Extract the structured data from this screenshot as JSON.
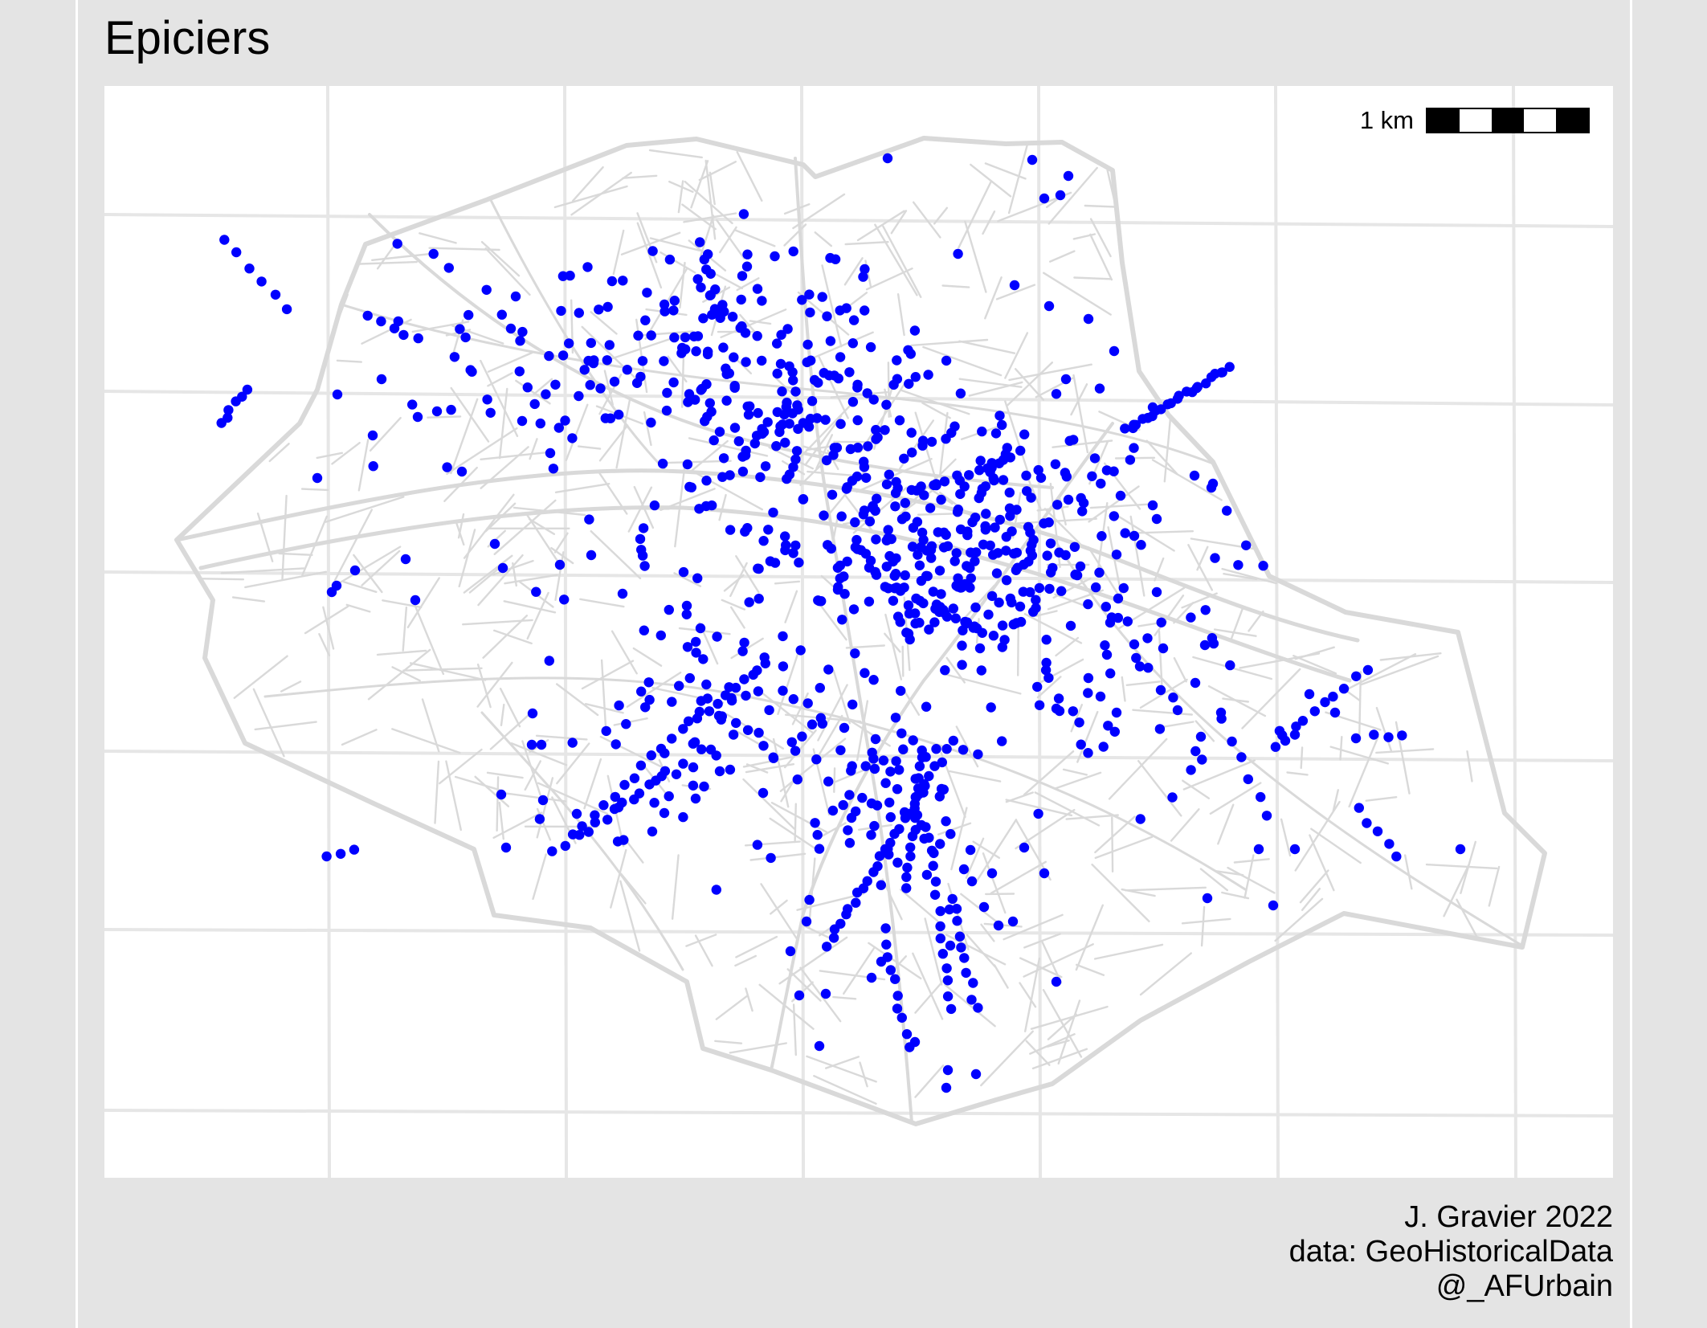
{
  "title": "Epiciers",
  "scale": {
    "label": "1 km",
    "segments": 5
  },
  "caption": {
    "credit": "J. Gravier 2022",
    "source": "data: GeoHistoricalData",
    "handle": "@_AFUrbain"
  },
  "colors": {
    "points": "#0000ff",
    "streets": "#d9d9d9",
    "graticule": "#e6e6e6",
    "panel": "#ffffff",
    "background": "#e4e4e4"
  },
  "map": {
    "layers": [
      "graticule",
      "street-network",
      "city-boundary",
      "epiciers-points"
    ],
    "point_layer": "Epiciers",
    "point_count_approx": 1050
  }
}
